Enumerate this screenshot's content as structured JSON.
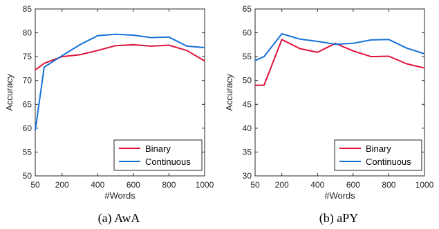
{
  "chart_data": [
    {
      "type": "line",
      "caption": "(a) AwA",
      "xlabel": "#Words",
      "ylabel": "Accuracy",
      "xlim": [
        50,
        1000
      ],
      "ylim": [
        50,
        85
      ],
      "xticks": [
        50,
        200,
        400,
        600,
        800,
        1000
      ],
      "yticks": [
        50,
        55,
        60,
        65,
        70,
        75,
        80,
        85
      ],
      "legend_position": "bottom-right",
      "series": [
        {
          "name": "Binary",
          "color": "#e0103a",
          "x": [
            50,
            100,
            200,
            300,
            400,
            500,
            600,
            700,
            800,
            900,
            1000
          ],
          "values": [
            72.2,
            73.6,
            75.0,
            75.4,
            76.3,
            77.3,
            77.5,
            77.2,
            77.4,
            76.3,
            74.1
          ]
        },
        {
          "name": "Continuous",
          "color": "#1670d8",
          "x": [
            50,
            100,
            200,
            300,
            400,
            500,
            600,
            700,
            800,
            900,
            1000
          ],
          "values": [
            59.5,
            72.8,
            75.2,
            77.5,
            79.4,
            79.7,
            79.5,
            79.0,
            79.1,
            77.2,
            76.9
          ]
        }
      ]
    },
    {
      "type": "line",
      "caption": "(b) aPY",
      "xlabel": "#Words",
      "ylabel": "Accuracy",
      "xlim": [
        50,
        1000
      ],
      "ylim": [
        30,
        65
      ],
      "xticks": [
        50,
        200,
        400,
        600,
        800,
        1000
      ],
      "yticks": [
        30,
        35,
        40,
        45,
        50,
        55,
        60,
        65
      ],
      "legend_position": "bottom-right",
      "series": [
        {
          "name": "Binary",
          "color": "#e0103a",
          "x": [
            50,
            100,
            200,
            300,
            400,
            500,
            600,
            700,
            800,
            900,
            1000
          ],
          "values": [
            49.0,
            49.0,
            58.6,
            56.7,
            55.9,
            57.8,
            56.2,
            55.0,
            55.1,
            53.5,
            52.6
          ]
        },
        {
          "name": "Continuous",
          "color": "#1670d8",
          "x": [
            50,
            100,
            200,
            300,
            400,
            500,
            600,
            700,
            800,
            900,
            1000
          ],
          "values": [
            54.2,
            55.0,
            59.8,
            58.7,
            58.2,
            57.6,
            57.8,
            58.5,
            58.6,
            56.8,
            55.6
          ]
        }
      ]
    }
  ]
}
